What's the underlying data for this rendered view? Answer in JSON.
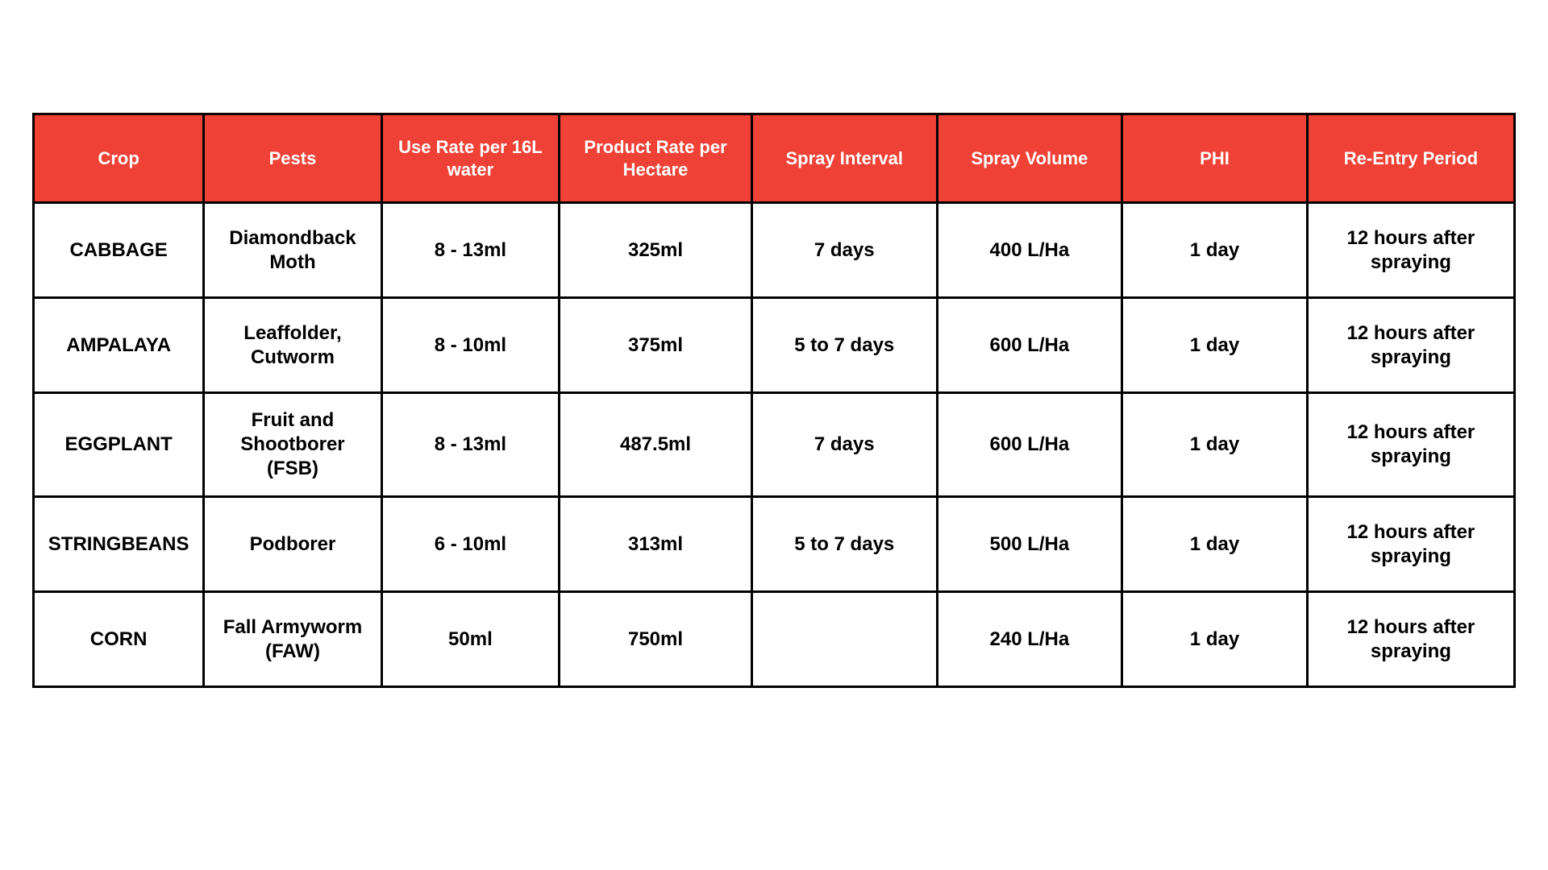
{
  "table": {
    "type": "table",
    "header_bg": "#ef4136",
    "header_text_color": "#ffffff",
    "border_color": "#000000",
    "body_bg": "#ffffff",
    "body_text_color": "#000000",
    "header_fontsize_pt": 17,
    "body_fontsize_pt": 18,
    "font_weight": 700,
    "columns": [
      {
        "label": "Crop"
      },
      {
        "label": "Pests"
      },
      {
        "label": "Use Rate per 16L water"
      },
      {
        "label": "Product Rate per Hectare"
      },
      {
        "label": "Spray Interval"
      },
      {
        "label": "Spray Volume"
      },
      {
        "label": "PHI"
      },
      {
        "label": "Re-Entry Period"
      }
    ],
    "rows": [
      {
        "cells": [
          "CABBAGE",
          "Diamondback Moth",
          "8 - 13ml",
          "325ml",
          "7 days",
          "400 L/Ha",
          "1 day",
          "12 hours after spraying"
        ]
      },
      {
        "cells": [
          "AMPALAYA",
          "Leaffolder, Cutworm",
          "8 - 10ml",
          "375ml",
          "5 to 7 days",
          "600 L/Ha",
          "1 day",
          "12 hours after spraying"
        ]
      },
      {
        "cells": [
          "EGGPLANT",
          "Fruit and Shootborer (FSB)",
          "8 - 13ml",
          "487.5ml",
          "7 days",
          "600 L/Ha",
          "1 day",
          "12 hours after spraying"
        ]
      },
      {
        "cells": [
          "STRINGBEANS",
          "Podborer",
          "6 - 10ml",
          "313ml",
          "5 to 7 days",
          "500 L/Ha",
          "1 day",
          "12 hours after spraying"
        ]
      },
      {
        "cells": [
          "CORN",
          "Fall Armyworm (FAW)",
          "50ml",
          "750ml",
          "",
          "240 L/Ha",
          "1 day",
          "12 hours after spraying"
        ]
      }
    ]
  }
}
